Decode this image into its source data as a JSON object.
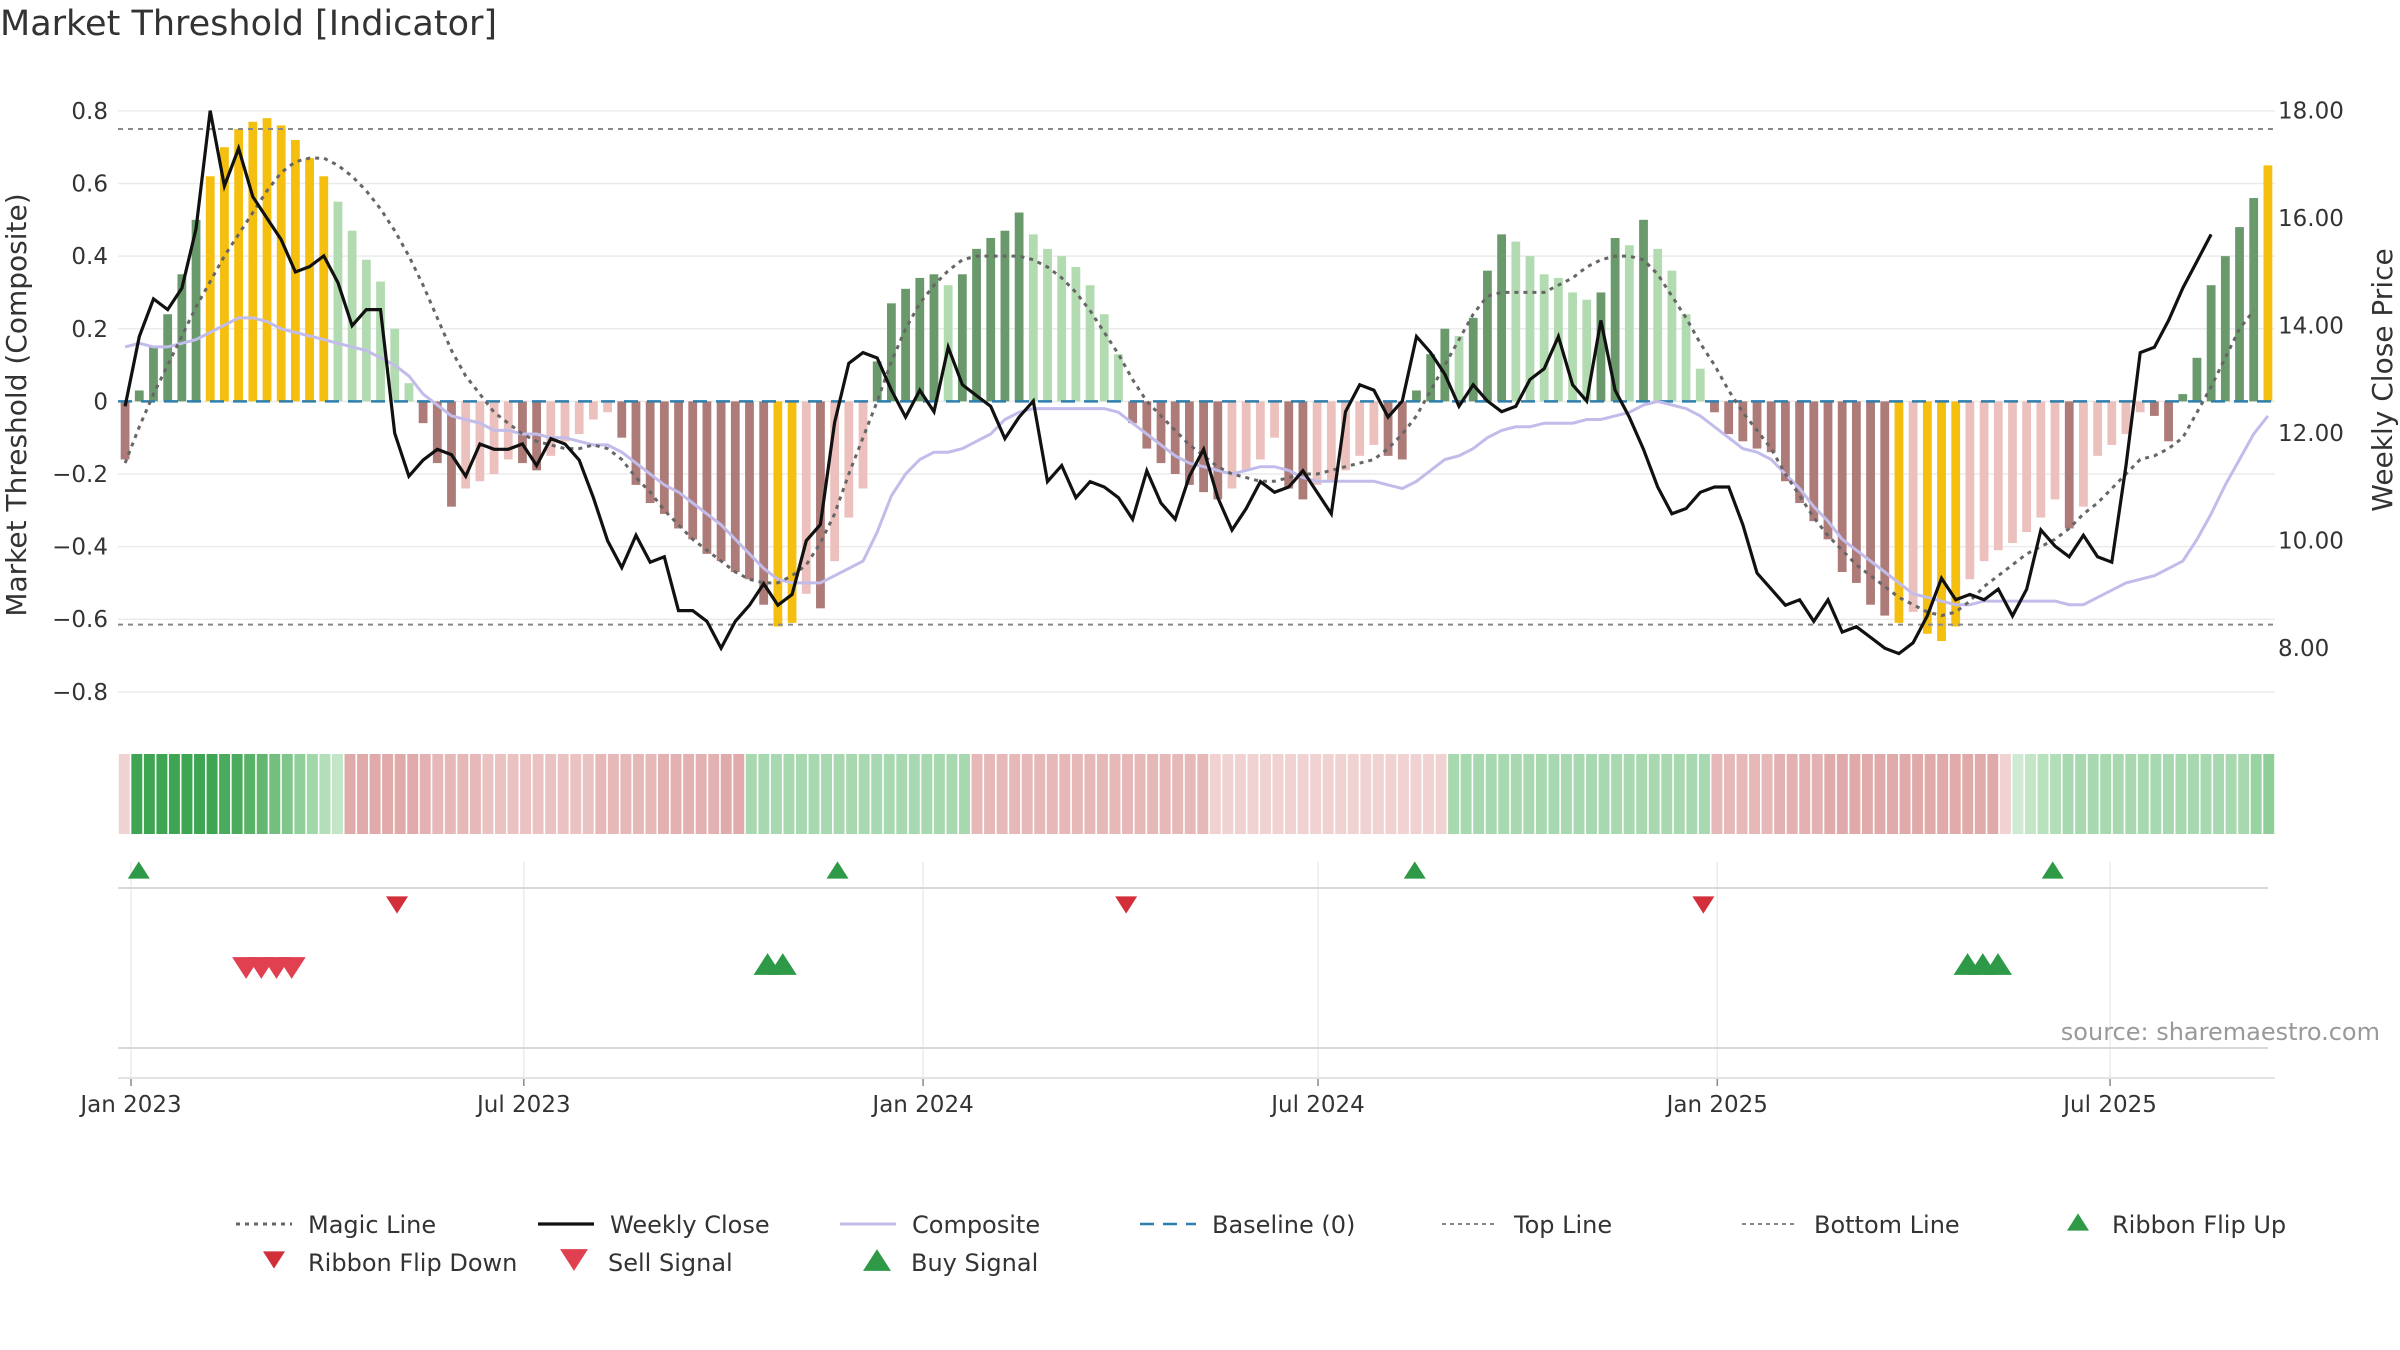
{
  "chart_data": {
    "type": "bar",
    "title": "Market Threshold [Indicator]",
    "ylabel_left": "Market Threshold (Composite)",
    "ylabel_right": "Weekly Close Price",
    "ylim_left": [
      -0.85,
      0.83
    ],
    "ylim_right": [
      6.85,
      18.2
    ],
    "yticks_left": [
      0.8,
      0.6,
      0.4,
      0.2,
      0,
      -0.2,
      -0.4,
      -0.6,
      -0.8
    ],
    "yticks_left_labels": [
      "0.8",
      "0.6",
      "0.4",
      "0.2",
      "0",
      "−0.2",
      "−0.4",
      "−0.6",
      "−0.8"
    ],
    "yticks_right": [
      18,
      16,
      14,
      12,
      10,
      8
    ],
    "yticks_right_labels": [
      "18.00",
      "16.00",
      "14.00",
      "12.00",
      "10.00",
      "8.00"
    ],
    "x_start": "2022-12-26",
    "x_end": "2025-09-15",
    "xtick_dates": [
      "2023-01-01",
      "2023-07-01",
      "2024-01-01",
      "2024-07-01",
      "2025-01-01",
      "2025-07-01"
    ],
    "xtick_labels": [
      "Jan 2023",
      "Jul 2023",
      "Jan 2024",
      "Jul 2024",
      "Jan 2025",
      "Jul 2025"
    ],
    "top_line": 0.75,
    "bottom_line": -0.615,
    "baseline": 0,
    "bar_values": [
      -0.16,
      0.03,
      0.15,
      0.24,
      0.35,
      0.5,
      0.62,
      0.7,
      0.75,
      0.77,
      0.78,
      0.76,
      0.72,
      0.67,
      0.62,
      0.55,
      0.47,
      0.39,
      0.33,
      0.2,
      0.05,
      -0.06,
      -0.17,
      -0.29,
      -0.24,
      -0.22,
      -0.2,
      -0.16,
      -0.17,
      -0.19,
      -0.15,
      -0.11,
      -0.09,
      -0.05,
      -0.03,
      -0.1,
      -0.23,
      -0.28,
      -0.31,
      -0.35,
      -0.38,
      -0.42,
      -0.44,
      -0.47,
      -0.49,
      -0.56,
      -0.62,
      -0.61,
      -0.53,
      -0.57,
      -0.44,
      -0.32,
      -0.24,
      0.11,
      0.27,
      0.31,
      0.34,
      0.35,
      0.32,
      0.35,
      0.42,
      0.45,
      0.47,
      0.52,
      0.46,
      0.42,
      0.4,
      0.37,
      0.32,
      0.24,
      0.13,
      -0.06,
      -0.13,
      -0.17,
      -0.2,
      -0.23,
      -0.25,
      -0.27,
      -0.24,
      -0.19,
      -0.16,
      -0.1,
      -0.24,
      -0.27,
      -0.23,
      -0.22,
      -0.19,
      -0.15,
      -0.12,
      -0.15,
      -0.16,
      0.03,
      0.13,
      0.2,
      0.18,
      0.23,
      0.36,
      0.46,
      0.44,
      0.4,
      0.35,
      0.34,
      0.3,
      0.28,
      0.3,
      0.45,
      0.43,
      0.5,
      0.42,
      0.36,
      0.24,
      0.09,
      -0.03,
      -0.09,
      -0.11,
      -0.13,
      -0.14,
      -0.22,
      -0.28,
      -0.33,
      -0.38,
      -0.47,
      -0.5,
      -0.56,
      -0.59,
      -0.61,
      -0.58,
      -0.64,
      -0.66,
      -0.62,
      -0.49,
      -0.44,
      -0.41,
      -0.39,
      -0.36,
      -0.32,
      -0.27,
      -0.35,
      -0.29,
      -0.15,
      -0.12,
      -0.09,
      -0.03,
      -0.04,
      -0.11,
      0.02,
      0.12,
      0.32,
      0.4,
      0.48,
      0.56,
      0.65
    ],
    "composite_values": [
      0.15,
      0.16,
      0.15,
      0.15,
      0.16,
      0.17,
      0.19,
      0.21,
      0.23,
      0.23,
      0.22,
      0.2,
      0.19,
      0.18,
      0.17,
      0.16,
      0.15,
      0.14,
      0.12,
      0.1,
      0.07,
      0.02,
      -0.01,
      -0.04,
      -0.05,
      -0.06,
      -0.08,
      -0.08,
      -0.09,
      -0.09,
      -0.1,
      -0.1,
      -0.11,
      -0.12,
      -0.12,
      -0.14,
      -0.17,
      -0.2,
      -0.23,
      -0.25,
      -0.28,
      -0.31,
      -0.34,
      -0.38,
      -0.42,
      -0.46,
      -0.49,
      -0.5,
      -0.5,
      -0.5,
      -0.48,
      -0.46,
      -0.44,
      -0.36,
      -0.26,
      -0.2,
      -0.16,
      -0.14,
      -0.14,
      -0.13,
      -0.11,
      -0.09,
      -0.05,
      -0.03,
      -0.02,
      -0.02,
      -0.02,
      -0.02,
      -0.02,
      -0.02,
      -0.03,
      -0.06,
      -0.09,
      -0.12,
      -0.15,
      -0.17,
      -0.18,
      -0.19,
      -0.2,
      -0.19,
      -0.18,
      -0.18,
      -0.19,
      -0.21,
      -0.22,
      -0.22,
      -0.22,
      -0.22,
      -0.22,
      -0.23,
      -0.24,
      -0.22,
      -0.19,
      -0.16,
      -0.15,
      -0.13,
      -0.1,
      -0.08,
      -0.07,
      -0.07,
      -0.06,
      -0.06,
      -0.06,
      -0.05,
      -0.05,
      -0.04,
      -0.03,
      -0.01,
      0.0,
      -0.01,
      -0.02,
      -0.04,
      -0.07,
      -0.1,
      -0.13,
      -0.14,
      -0.16,
      -0.2,
      -0.24,
      -0.29,
      -0.33,
      -0.38,
      -0.41,
      -0.44,
      -0.47,
      -0.5,
      -0.53,
      -0.54,
      -0.55,
      -0.56,
      -0.56,
      -0.55,
      -0.55,
      -0.55,
      -0.55,
      -0.55,
      -0.55,
      -0.56,
      -0.56,
      -0.54,
      -0.52,
      -0.5,
      -0.49,
      -0.48,
      -0.46,
      -0.44,
      -0.38,
      -0.31,
      -0.23,
      -0.16,
      -0.09,
      -0.04
    ],
    "magic_values": [
      -0.17,
      -0.07,
      0.02,
      0.1,
      0.18,
      0.26,
      0.33,
      0.4,
      0.46,
      0.52,
      0.58,
      0.63,
      0.66,
      0.67,
      0.67,
      0.65,
      0.62,
      0.58,
      0.53,
      0.47,
      0.4,
      0.32,
      0.23,
      0.14,
      0.07,
      0.02,
      -0.03,
      -0.06,
      -0.09,
      -0.11,
      -0.12,
      -0.13,
      -0.13,
      -0.12,
      -0.13,
      -0.16,
      -0.21,
      -0.25,
      -0.3,
      -0.34,
      -0.38,
      -0.41,
      -0.44,
      -0.47,
      -0.49,
      -0.5,
      -0.5,
      -0.48,
      -0.45,
      -0.39,
      -0.31,
      -0.2,
      -0.1,
      0.0,
      0.11,
      0.2,
      0.27,
      0.32,
      0.36,
      0.39,
      0.4,
      0.4,
      0.4,
      0.4,
      0.39,
      0.37,
      0.34,
      0.3,
      0.25,
      0.19,
      0.13,
      0.06,
      0.0,
      -0.04,
      -0.08,
      -0.12,
      -0.15,
      -0.18,
      -0.2,
      -0.21,
      -0.22,
      -0.22,
      -0.21,
      -0.2,
      -0.2,
      -0.19,
      -0.18,
      -0.17,
      -0.16,
      -0.13,
      -0.09,
      -0.04,
      0.03,
      0.1,
      0.17,
      0.24,
      0.29,
      0.3,
      0.3,
      0.3,
      0.3,
      0.32,
      0.34,
      0.37,
      0.39,
      0.4,
      0.4,
      0.39,
      0.35,
      0.29,
      0.23,
      0.16,
      0.1,
      0.03,
      -0.03,
      -0.08,
      -0.13,
      -0.2,
      -0.26,
      -0.32,
      -0.37,
      -0.41,
      -0.45,
      -0.48,
      -0.51,
      -0.54,
      -0.56,
      -0.58,
      -0.59,
      -0.58,
      -0.55,
      -0.51,
      -0.48,
      -0.45,
      -0.42,
      -0.4,
      -0.38,
      -0.35,
      -0.31,
      -0.28,
      -0.24,
      -0.2,
      -0.16,
      -0.15,
      -0.13,
      -0.1,
      -0.03,
      0.04,
      0.12,
      0.2,
      0.25
    ],
    "close_values": [
      12.5,
      13.8,
      14.5,
      14.3,
      14.7,
      15.8,
      18.0,
      16.6,
      17.3,
      16.4,
      16.0,
      15.6,
      15.0,
      15.1,
      15.3,
      14.8,
      14.0,
      14.3,
      14.3,
      12.0,
      11.2,
      11.5,
      11.7,
      11.6,
      11.2,
      11.8,
      11.7,
      11.7,
      11.8,
      11.4,
      11.9,
      11.8,
      11.5,
      10.8,
      10.0,
      9.5,
      10.1,
      9.6,
      9.7,
      8.7,
      8.7,
      8.5,
      8.0,
      8.5,
      8.8,
      9.2,
      8.8,
      9.0,
      10.0,
      10.3,
      12.2,
      13.3,
      13.5,
      13.4,
      12.8,
      12.3,
      12.8,
      12.4,
      13.6,
      12.9,
      12.7,
      12.5,
      11.9,
      12.3,
      12.6,
      11.1,
      11.4,
      10.8,
      11.1,
      11.0,
      10.8,
      10.4,
      11.3,
      10.7,
      10.4,
      11.2,
      11.7,
      10.8,
      10.2,
      10.6,
      11.1,
      10.9,
      11.0,
      11.3,
      10.9,
      10.5,
      12.4,
      12.9,
      12.8,
      12.3,
      12.6,
      13.8,
      13.5,
      13.1,
      12.5,
      12.9,
      12.6,
      12.4,
      12.5,
      13.0,
      13.2,
      13.8,
      12.9,
      12.6,
      14.1,
      12.8,
      12.3,
      11.7,
      11.0,
      10.5,
      10.6,
      10.9,
      11.0,
      11.0,
      10.3,
      9.4,
      9.1,
      8.8,
      8.9,
      8.5,
      8.9,
      8.3,
      8.4,
      8.2,
      8.0,
      7.9,
      8.1,
      8.6,
      9.3,
      8.9,
      9.0,
      8.9,
      9.1,
      8.6,
      9.1,
      10.2,
      9.9,
      9.7,
      10.1,
      9.7,
      9.6,
      11.4,
      13.5,
      13.6,
      14.1,
      14.7,
      15.2,
      15.7
    ]
  },
  "ribbon": {
    "colors": [
      "#f0d2d2",
      "#3ea553",
      "#3ea553",
      "#3ea553",
      "#3ea553",
      "#3ea553",
      "#3ea553",
      "#3ea553",
      "#4bab5d",
      "#4bab5d",
      "#59b268",
      "#63b770",
      "#72bf7e",
      "#80c68b",
      "#90cf9a",
      "#a2d7aa",
      "#b2dfb8",
      "#c2e6c6",
      "#e0aaaa",
      "#e0aaaa",
      "#e0aaaa",
      "#e0aaaa",
      "#e0aaaa",
      "#e0aaaa",
      "#e3b1b1",
      "#e6b8b8",
      "#e6b8b8",
      "#e6b8b8",
      "#e6b8b8",
      "#eac2c2",
      "#eac2c2",
      "#eac2c2",
      "#eac2c2",
      "#eac2c2",
      "#eac2c2",
      "#eac2c2",
      "#eac2c2",
      "#eac2c2",
      "#e6b8b8",
      "#e6b8b8",
      "#e6b8b8",
      "#e6b8b8",
      "#e6b8b8",
      "#e3b1b1",
      "#e3b1b1",
      "#e3b1b1",
      "#e3b1b1",
      "#e3b1b1",
      "#e0aaaa",
      "#e0aaaa",
      "#a8d8af",
      "#a8d8af",
      "#a8d8af",
      "#a8d8af",
      "#a8d8af",
      "#a8d8af",
      "#a8d8af",
      "#a8d8af",
      "#a8d8af",
      "#a8d8af",
      "#a8d8af",
      "#a8d8af",
      "#a8d8af",
      "#a8d8af",
      "#a8d8af",
      "#a8d8af",
      "#a8d8af",
      "#a8d8af",
      "#e6b8b8",
      "#e6b8b8",
      "#e6b8b8",
      "#e6b8b8",
      "#e6b8b8",
      "#e6b8b8",
      "#e6b8b8",
      "#e6b8b8",
      "#e6b8b8",
      "#e6b8b8",
      "#e6b8b8",
      "#e6b8b8",
      "#e6b8b8",
      "#e6b8b8",
      "#e6b8b8",
      "#e6b8b8",
      "#e6b8b8",
      "#e6b8b8",
      "#e6b8b8",
      "#f0d2d2",
      "#f0d2d2",
      "#f0d2d2",
      "#f0d2d2",
      "#f0d2d2",
      "#f0d2d2",
      "#f0d2d2",
      "#f0d2d2",
      "#f0d2d2",
      "#f0d2d2",
      "#f0d2d2",
      "#f0d2d2",
      "#f0d2d2",
      "#f0d2d2",
      "#f0d2d2",
      "#f0d2d2",
      "#f0d2d2",
      "#f0d2d2",
      "#f0d2d2",
      "#a8d8af",
      "#a8d8af",
      "#a8d8af",
      "#a8d8af",
      "#a8d8af",
      "#a8d8af",
      "#a8d8af",
      "#a8d8af",
      "#a8d8af",
      "#a8d8af",
      "#a8d8af",
      "#a8d8af",
      "#a8d8af",
      "#a8d8af",
      "#a8d8af",
      "#a8d8af",
      "#a8d8af",
      "#a8d8af",
      "#a8d8af",
      "#a8d8af",
      "#a8d8af",
      "#e6b8b8",
      "#e6b8b8",
      "#e6b8b8",
      "#e6b8b8",
      "#e6b8b8",
      "#e3b1b1",
      "#e3b1b1",
      "#e3b1b1",
      "#e3b1b1",
      "#e0aaaa",
      "#e0aaaa",
      "#e0aaaa",
      "#e0aaaa",
      "#e0aaaa",
      "#e0aaaa",
      "#e0aaaa",
      "#e0aaaa",
      "#e0aaaa",
      "#e0aaaa",
      "#e0aaaa",
      "#e0aaaa",
      "#e0aaaa",
      "#e0aaaa",
      "#f0d2d2",
      "#cfead3",
      "#c2e6c6",
      "#b8e2be",
      "#b2dfb8",
      "#a8d8af",
      "#a8d8af",
      "#a8d8af",
      "#a8d8af",
      "#a8d8af",
      "#a8d8af",
      "#a8d8af",
      "#a8d8af",
      "#a8d8af",
      "#a8d8af",
      "#a8d8af",
      "#a8d8af",
      "#a8d8af",
      "#a8d8af",
      "#a8d8af",
      "#98d4a2",
      "#8ecf99"
    ]
  },
  "signals": {
    "ribbon_flip_up": [
      1,
      47,
      85,
      127
    ],
    "ribbon_flip_down": [
      18,
      66,
      104
    ],
    "sell": [
      8,
      9,
      10,
      11
    ],
    "buy": [
      42,
      43,
      121,
      122,
      123
    ]
  },
  "legend": {
    "magic_line": "Magic Line",
    "weekly_close": "Weekly Close",
    "composite": "Composite",
    "baseline": "Baseline (0)",
    "top_line": "Top Line",
    "bottom_line": "Bottom Line",
    "ribbon_flip_up": "Ribbon Flip Up",
    "ribbon_flip_down": "Ribbon Flip Down",
    "sell_signal": "Sell Signal",
    "buy_signal": "Buy Signal"
  },
  "source": "source: sharemaestro.com",
  "colors": {
    "bar_pos_strong": "#6a9a6c",
    "bar_pos_weak": "#b3dbb1",
    "bar_neg_strong": "#ad7b78",
    "bar_neg_weak": "#ecc1bd",
    "bar_extreme": "#f5bf0f",
    "close_line": "#111111",
    "composite_line": "#c2bceb",
    "magic_line": "#666666",
    "baseline": "#2f7fad",
    "threshold_line": "#888888",
    "up_marker": "#2e9a48",
    "down_marker": "#d22f3a",
    "sell_marker": "#e04050",
    "grid": "#ebebeb"
  }
}
